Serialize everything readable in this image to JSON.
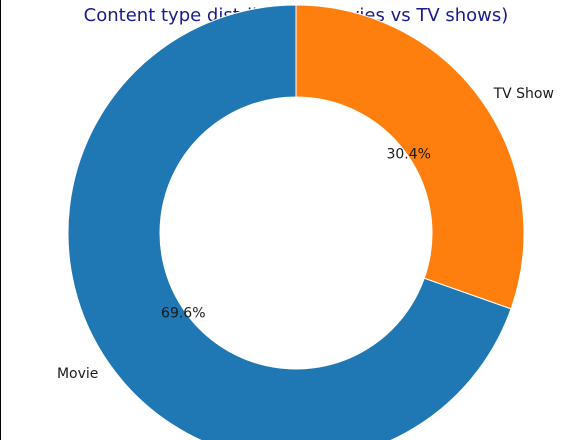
{
  "chart_data": {
    "type": "pie",
    "variant": "donut",
    "title": "Content type distribution (Movies vs TV shows)",
    "title_color": "#1a1a8c",
    "categories": [
      "TV Show",
      "Movie"
    ],
    "values": [
      30.4,
      69.6
    ],
    "value_labels": [
      "30.4%",
      "69.6%"
    ],
    "colors": [
      "#ff7f0e",
      "#1f77b4"
    ],
    "start_angle_deg": 90,
    "direction": "clockwise"
  }
}
